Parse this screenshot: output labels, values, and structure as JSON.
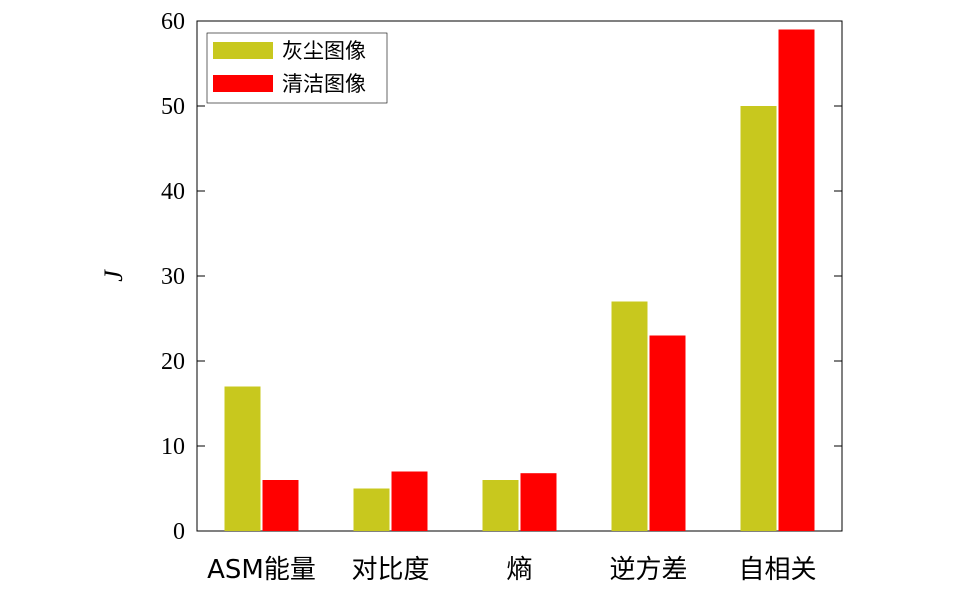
{
  "chart_data": {
    "type": "bar",
    "categories": [
      "ASM能量",
      "对比度",
      "熵",
      "逆方差",
      "自相关"
    ],
    "series": [
      {
        "name": "灰尘图像",
        "values": [
          17,
          5,
          6,
          27,
          50
        ],
        "color": "#c8c81e"
      },
      {
        "name": "清洁图像",
        "values": [
          6,
          7,
          6.8,
          23,
          59
        ],
        "color": "#ff0000"
      }
    ],
    "ylabel": "J",
    "ylim": [
      0,
      60
    ],
    "yticks": [
      "0",
      "10",
      "20",
      "30",
      "40",
      "50",
      "60"
    ],
    "legend_position": "top-left",
    "grid": false
  }
}
